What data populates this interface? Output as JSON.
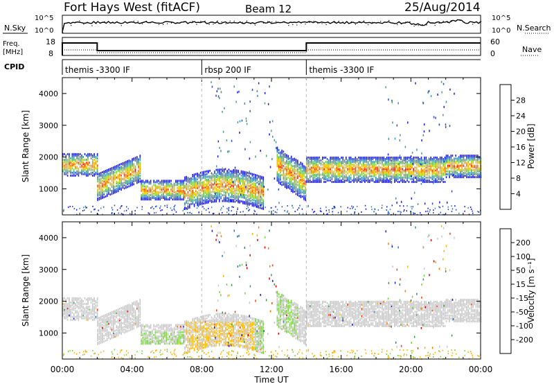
{
  "header": {
    "station": "Fort Hays West (fitACF)",
    "beam": "Beam 12",
    "date": "25/Aug/2014"
  },
  "panels": {
    "nsky_label": "N.Sky",
    "nsky_ticks": [
      "10^5",
      "10^0"
    ],
    "nsearch_label": "N.Search",
    "nsearch_ticks": [
      "10^5",
      "10^0"
    ],
    "freq_label": "Freq.",
    "freq_unit": "[MHz]",
    "freq_ticks": [
      "18",
      "8"
    ],
    "nave_label": "Nave",
    "nave_ticks": [
      "60",
      "0"
    ],
    "cpid_label": "CPID",
    "cpid_segments": [
      {
        "name": "themis -3300 IF",
        "start_h": 0,
        "end_h": 8
      },
      {
        "name": "rbsp 200 IF",
        "start_h": 8,
        "end_h": 14
      },
      {
        "name": "themis -3300 IF",
        "start_h": 14,
        "end_h": 24
      }
    ]
  },
  "chart_data": [
    {
      "type": "heatmap",
      "panel": "power",
      "xlabel": "",
      "ylabel": "Slant Range [km]",
      "x_range_h": [
        0,
        24
      ],
      "ylim": [
        180,
        4500
      ],
      "yticks": [
        1000,
        2000,
        3000,
        4000
      ],
      "colorbar_label": "Power [dB]",
      "colorbar_ticks": [
        "4",
        "8",
        "12",
        "16",
        "20",
        "24",
        "28"
      ],
      "colorbar_colors": [
        "#1a1aff",
        "#2850c8",
        "#3c8cb4",
        "#50a07a",
        "#78c846",
        "#c8c800",
        "#ffb400",
        "#ff7800",
        "#ff3c00",
        "#ff0000"
      ],
      "echo_bands": [
        {
          "t0": 0.0,
          "t1": 2.0,
          "center_km": 1800,
          "width_km": 350
        },
        {
          "t0": 2.0,
          "t1": 4.5,
          "center_km": 1200,
          "width_km": 420
        },
        {
          "t0": 4.5,
          "t1": 7.0,
          "center_km": 1000,
          "width_km": 300
        },
        {
          "t0": 7.0,
          "t1": 11.5,
          "center_km": 1050,
          "width_km": 500
        },
        {
          "t0": 12.3,
          "t1": 14.0,
          "center_km": 1400,
          "width_km": 550
        },
        {
          "t0": 14.0,
          "t1": 22.0,
          "center_km": 1650,
          "width_km": 400
        },
        {
          "t0": 22.0,
          "t1": 24.0,
          "center_km": 1750,
          "width_km": 350
        }
      ]
    },
    {
      "type": "heatmap",
      "panel": "velocity",
      "xlabel": "Time UT",
      "ylabel": "Slant Range [km]",
      "x_range_h": [
        0,
        24
      ],
      "xticks": [
        "00:00",
        "04:00",
        "08:00",
        "12:00",
        "16:00",
        "20:00",
        "00:00"
      ],
      "ylim": [
        180,
        4500
      ],
      "yticks": [
        1000,
        2000,
        3000,
        4000
      ],
      "colorbar_label": "Velocity [m s⁻¹]",
      "colorbar_ticks": [
        "200",
        "100",
        "50",
        "15",
        "-15",
        "-50",
        "-100",
        "-200"
      ],
      "colorbar_colors": [
        "#1a1ad2",
        "#2878b4",
        "#3c9650",
        "#78d23c",
        "#c8c8c8",
        "#c8c8c8",
        "#ffb400",
        "#ff7800",
        "#ff3c00",
        "#e60000"
      ]
    }
  ]
}
